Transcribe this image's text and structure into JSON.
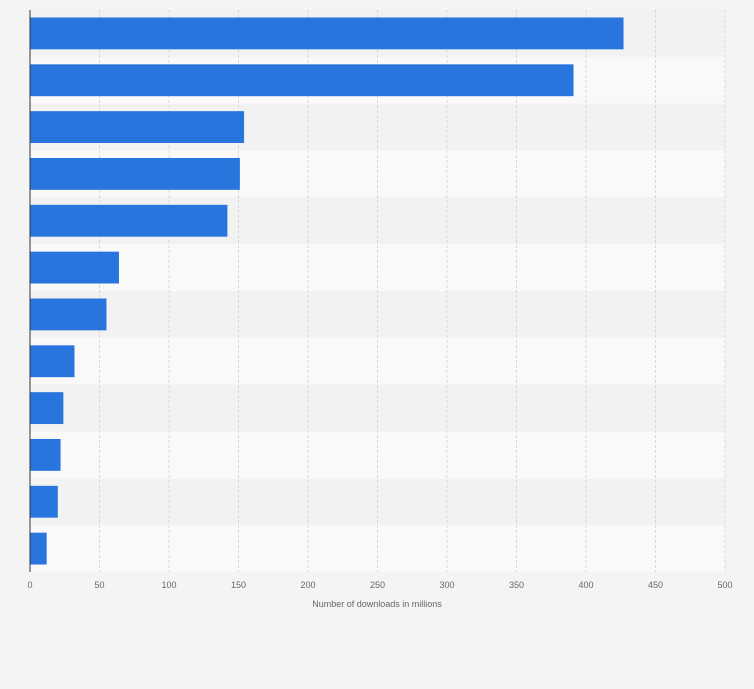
{
  "chart_data": {
    "type": "bar",
    "orientation": "horizontal",
    "title": "",
    "xlabel": "Number of downloads in millions",
    "ylabel": "",
    "xlim": [
      0,
      500
    ],
    "xticks": [
      0,
      50,
      100,
      150,
      200,
      250,
      300,
      350,
      400,
      450,
      500
    ],
    "grid": true,
    "values": [
      427,
      391,
      154,
      151,
      142,
      64,
      55,
      32,
      24,
      22,
      20,
      12
    ],
    "colors": {
      "bar": "#2876dd",
      "band_light": "#f9f9f9",
      "band_dark": "#f2f2f2",
      "grid": "#d9d9d9",
      "axis": "#333333"
    }
  }
}
